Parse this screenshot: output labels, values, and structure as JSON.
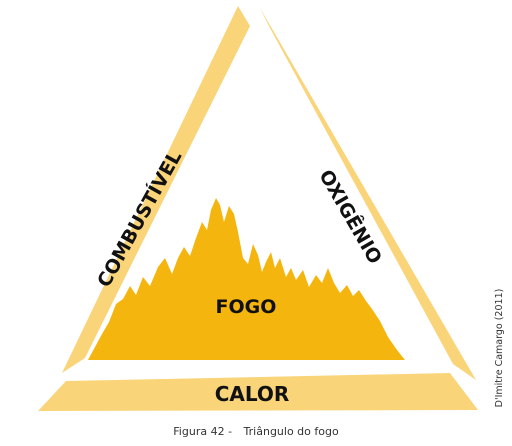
{
  "figure": {
    "labels": {
      "left_side": "COMBUSTÍVEL",
      "right_side": "OXIGÊNIO",
      "bottom_side": "CALOR",
      "center": "FOGO"
    },
    "credit": "D'Imitre Camargo (2011)",
    "caption": {
      "number": "Figura 42 -",
      "title": "Triângulo do fogo"
    },
    "colors": {
      "side_fill": "#f9d479",
      "flame_fill": "#f5b50f",
      "label_text": "#111111"
    }
  }
}
